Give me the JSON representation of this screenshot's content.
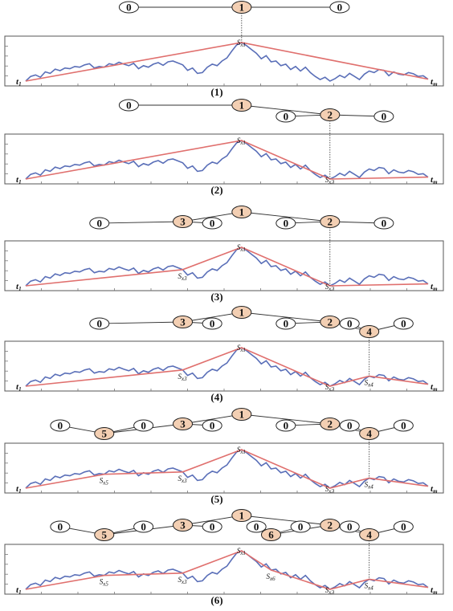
{
  "colors": {
    "series": "#5a6fb8",
    "approx": "#e0706e",
    "split_node_fill": "#f3cfb3",
    "leaf_node_fill": "#ffffff",
    "node_stroke": "#222222",
    "panel_border": "#555555"
  },
  "t_start": {
    "main": "t",
    "sub": "1"
  },
  "t_end": {
    "main": "t",
    "sub": "m"
  },
  "series": [
    0.0,
    0.12,
    0.16,
    0.1,
    0.24,
    0.2,
    0.31,
    0.27,
    0.34,
    0.32,
    0.38,
    0.36,
    0.42,
    0.45,
    0.34,
    0.38,
    0.36,
    0.45,
    0.42,
    0.49,
    0.44,
    0.4,
    0.46,
    0.32,
    0.4,
    0.36,
    0.44,
    0.48,
    0.41,
    0.5,
    0.52,
    0.47,
    0.42,
    0.28,
    0.34,
    0.2,
    0.22,
    0.36,
    0.44,
    0.4,
    0.52,
    0.6,
    0.78,
    0.94,
    1.0,
    0.92,
    0.82,
    0.72,
    0.58,
    0.66,
    0.5,
    0.52,
    0.4,
    0.44,
    0.3,
    0.38,
    0.26,
    0.36,
    0.22,
    0.12,
    0.04,
    0.1,
    0.0,
    0.06,
    0.15,
    0.09,
    0.2,
    0.12,
    0.04,
    0.18,
    0.26,
    0.22,
    0.3,
    0.28,
    0.14,
    0.24,
    0.18,
    0.16,
    0.22,
    0.19,
    0.12,
    0.14,
    0.05
  ],
  "panels": [
    {
      "caption": "(1)",
      "breakpoints": [
        {
          "index": 44,
          "main": "S",
          "sub": "x1"
        }
      ],
      "tree": {
        "splits": [
          {
            "label": "1",
            "index": 44
          }
        ],
        "leaves": [
          "0",
          "0"
        ]
      }
    },
    {
      "caption": "(2)",
      "breakpoints": [
        {
          "index": 44,
          "main": "S",
          "sub": "x1"
        },
        {
          "index": 62,
          "main": "S",
          "sub": "x2"
        }
      ],
      "tree": {
        "splits": [
          {
            "label": "1",
            "index": 44
          },
          {
            "label": "2",
            "index": 62
          }
        ],
        "leaves": [
          "0",
          "0",
          "0"
        ]
      }
    },
    {
      "caption": "(3)",
      "breakpoints": [
        {
          "index": 32,
          "main": "S",
          "sub": "x3"
        },
        {
          "index": 44,
          "main": "S",
          "sub": "x1"
        },
        {
          "index": 62,
          "main": "S",
          "sub": "x2"
        }
      ],
      "tree": {
        "splits": [
          {
            "label": "1",
            "index": 44
          },
          {
            "label": "3",
            "index": 32
          },
          {
            "label": "2",
            "index": 62
          }
        ],
        "leaves": [
          "0",
          "0",
          "0",
          "0"
        ]
      }
    },
    {
      "caption": "(4)",
      "breakpoints": [
        {
          "index": 32,
          "main": "S",
          "sub": "x3"
        },
        {
          "index": 44,
          "main": "S",
          "sub": "x1"
        },
        {
          "index": 62,
          "main": "S",
          "sub": "x2"
        },
        {
          "index": 70,
          "main": "S",
          "sub": "x4"
        }
      ],
      "tree": {
        "splits": [
          {
            "label": "1",
            "index": 44
          },
          {
            "label": "3",
            "index": 32
          },
          {
            "label": "2",
            "index": 62
          },
          {
            "label": "4",
            "index": 70
          }
        ],
        "leaves": [
          "0",
          "0",
          "0",
          "0",
          "0"
        ]
      }
    },
    {
      "caption": "(5)",
      "breakpoints": [
        {
          "index": 16,
          "main": "S",
          "sub": "x5"
        },
        {
          "index": 32,
          "main": "S",
          "sub": "x3"
        },
        {
          "index": 44,
          "main": "S",
          "sub": "x1"
        },
        {
          "index": 62,
          "main": "S",
          "sub": "x2"
        },
        {
          "index": 70,
          "main": "S",
          "sub": "x4"
        }
      ],
      "tree": {
        "splits": [
          {
            "label": "1",
            "index": 44
          },
          {
            "label": "3",
            "index": 32
          },
          {
            "label": "5",
            "index": 16
          },
          {
            "label": "2",
            "index": 62
          },
          {
            "label": "4",
            "index": 70
          }
        ],
        "leaves": [
          "0",
          "0",
          "0",
          "0",
          "0",
          "0"
        ]
      }
    },
    {
      "caption": "(6)",
      "breakpoints": [
        {
          "index": 16,
          "main": "S",
          "sub": "x5"
        },
        {
          "index": 32,
          "main": "S",
          "sub": "x3"
        },
        {
          "index": 44,
          "main": "S",
          "sub": "x1"
        },
        {
          "index": 50,
          "main": "S",
          "sub": "x6"
        },
        {
          "index": 62,
          "main": "S",
          "sub": "x2"
        },
        {
          "index": 70,
          "main": "S",
          "sub": "x4"
        }
      ],
      "tree": {
        "splits": [
          {
            "label": "1",
            "index": 44
          },
          {
            "label": "3",
            "index": 32
          },
          {
            "label": "5",
            "index": 16
          },
          {
            "label": "2",
            "index": 62
          },
          {
            "label": "6",
            "index": 50
          },
          {
            "label": "4",
            "index": 70
          }
        ],
        "leaves": [
          "0",
          "0",
          "0",
          "0",
          "0",
          "0",
          "0"
        ]
      }
    }
  ]
}
